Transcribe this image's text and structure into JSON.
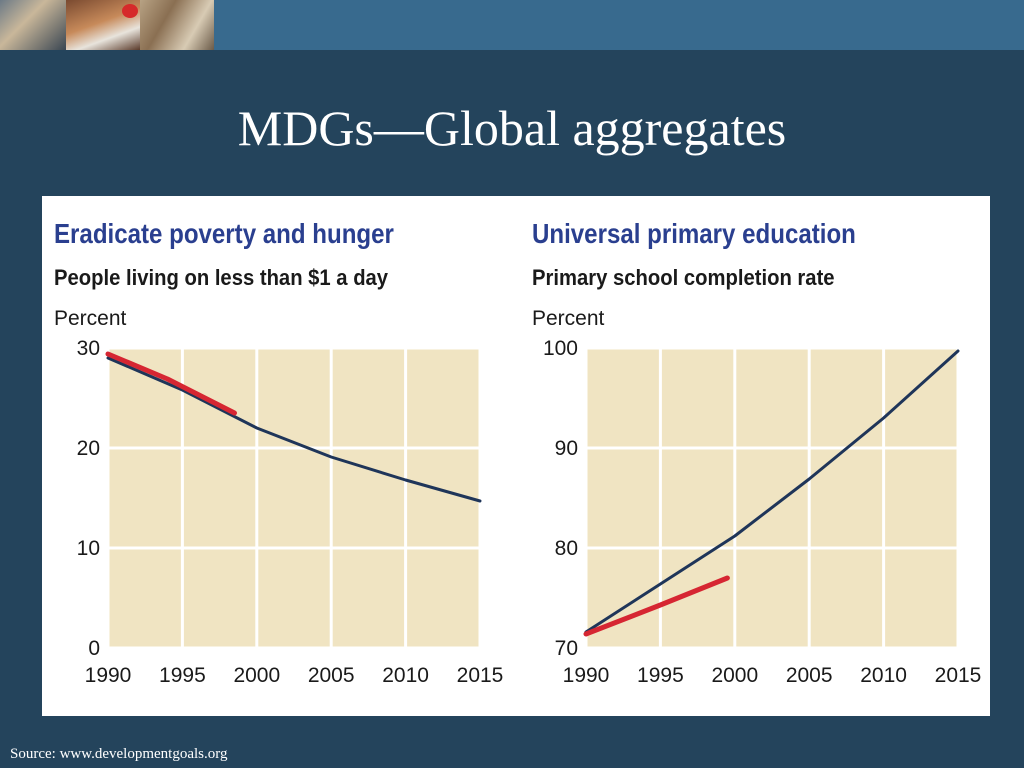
{
  "slide": {
    "title": "MDGs—Global aggregates",
    "source": "Source: www.developmentgoals.org"
  },
  "colors": {
    "background": "#24445c",
    "top_bar": "#386a8e",
    "plot_bg": "#f0e4c2",
    "gridline": "#ffffff",
    "actual_line": "#d62632",
    "trend_line": "#1f3559",
    "chart_title": "#2a3f8f"
  },
  "charts": {
    "left": {
      "title": "Eradicate poverty and hunger",
      "subtitle": "People living on less than $1 a day",
      "unit": "Percent"
    },
    "right": {
      "title": "Universal primary education",
      "subtitle": "Primary school completion rate",
      "unit": "Percent"
    }
  },
  "chart_data": [
    {
      "type": "line",
      "title": "Eradicate poverty and hunger",
      "subtitle": "People living on less than $1 a day",
      "ylabel": "Percent",
      "xlabel": "",
      "xlim": [
        1990,
        2015
      ],
      "ylim": [
        0,
        30
      ],
      "x_ticks": [
        1990,
        1995,
        2000,
        2005,
        2010,
        2015
      ],
      "y_ticks": [
        0,
        10,
        20,
        30
      ],
      "grid": true,
      "series": [
        {
          "role": "trend",
          "color": "#1f3559",
          "x": [
            1990,
            1995,
            2000,
            2005,
            2010,
            2015
          ],
          "y": [
            29.0,
            25.8,
            22.0,
            19.1,
            16.8,
            14.7
          ]
        },
        {
          "role": "actual",
          "color": "#d62632",
          "x": [
            1990,
            1994,
            1998.5
          ],
          "y": [
            29.4,
            26.9,
            23.5
          ]
        }
      ]
    },
    {
      "type": "line",
      "title": "Universal primary education",
      "subtitle": "Primary school completion rate",
      "ylabel": "Percent",
      "xlabel": "",
      "xlim": [
        1990,
        2015
      ],
      "ylim": [
        70,
        100
      ],
      "x_ticks": [
        1990,
        1995,
        2000,
        2005,
        2010,
        2015
      ],
      "y_ticks": [
        70,
        80,
        90,
        100
      ],
      "grid": true,
      "series": [
        {
          "role": "trend",
          "color": "#1f3559",
          "x": [
            1990,
            1995,
            2000,
            2005,
            2010,
            2015
          ],
          "y": [
            71.6,
            76.4,
            81.2,
            86.9,
            93.0,
            99.7
          ]
        },
        {
          "role": "actual",
          "color": "#d62632",
          "x": [
            1990,
            1995,
            1999.5
          ],
          "y": [
            71.4,
            74.3,
            77.0
          ]
        }
      ]
    }
  ]
}
